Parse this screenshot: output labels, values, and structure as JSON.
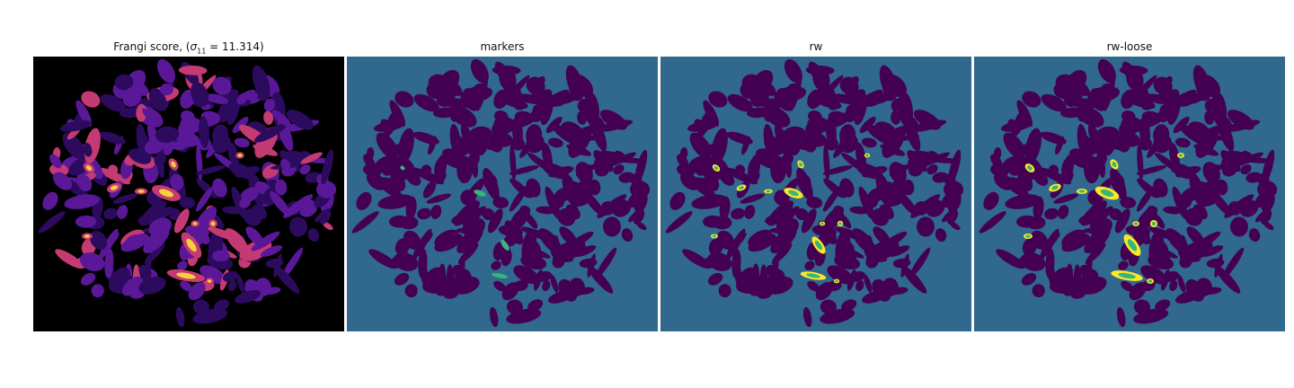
{
  "figure": {
    "panels": [
      {
        "id": "frangi",
        "title_prefix": "Frangi score, (",
        "title_sigma": "σ",
        "title_sub": "11",
        "title_suffix": " = 11.314)",
        "colormap": "inferno"
      },
      {
        "id": "markers",
        "title": "markers",
        "colormap": "viridis"
      },
      {
        "id": "rw",
        "title": "rw",
        "colormap": "viridis"
      },
      {
        "id": "rw-loose",
        "title": "rw-loose",
        "colormap": "viridis"
      }
    ],
    "colors": {
      "frangi_bg": "#000000",
      "frangi_low": "#2c0b5e",
      "frangi_mid": "#5a1899",
      "frangi_high": "#c43a73",
      "frangi_peak": "#f7d13d",
      "seg_bg": "#31688e",
      "seg_vessel": "#440154",
      "seg_marker": "#35b779",
      "seg_detect": "#fde725"
    }
  }
}
